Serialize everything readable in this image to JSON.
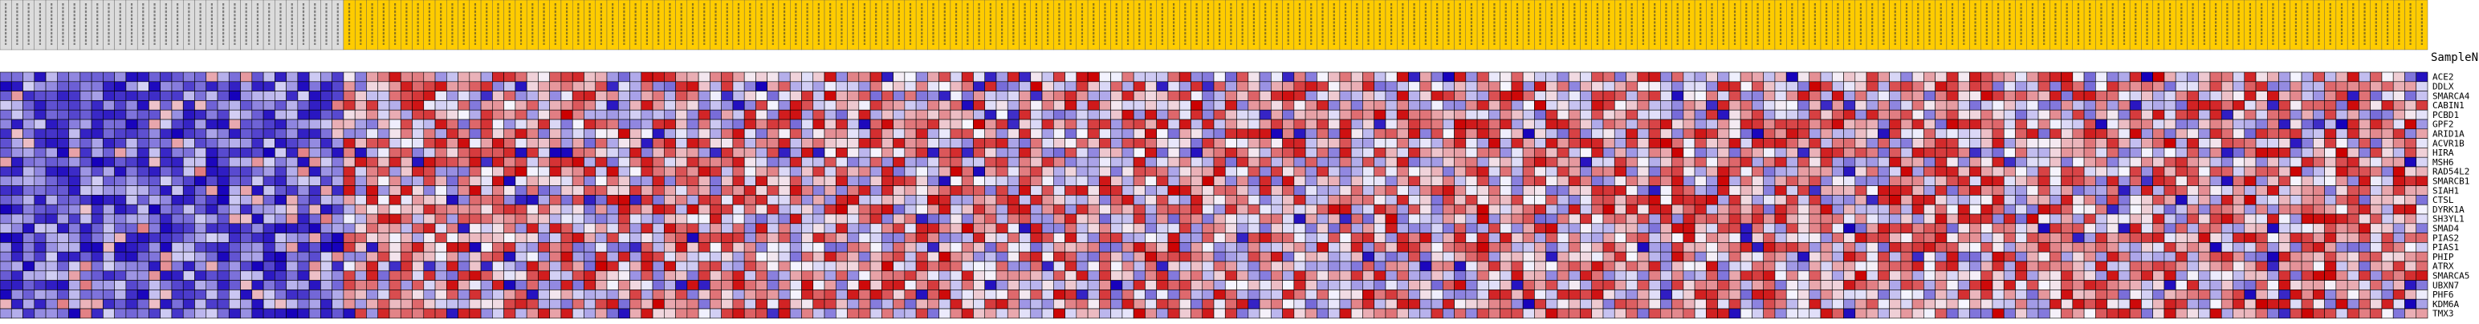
{
  "chart_data": {
    "type": "heatmap",
    "title": "",
    "row_header": "SampleName",
    "rows": [
      "ACE2",
      "DDLX",
      "SMARCA4",
      "CABIN1",
      "PCBD1",
      "GPF2",
      "ARID1A",
      "ACVR1B",
      "HIRA",
      "MSH6",
      "RAD54L2",
      "SMARCB1",
      "SIAH1",
      "CTSL",
      "DYRK1A",
      "SH3YL1",
      "SMAD4",
      "PIAS2",
      "PIAS1",
      "PHIP",
      "ATRX",
      "SMARCA5",
      "UBXN7",
      "PHF6",
      "KDM6A",
      "TMX3"
    ],
    "n_columns": 212,
    "n_normal_columns": 30,
    "n_tumor_columns": 182,
    "column_label_text": "illegible sample identifiers",
    "value_range": [
      -1,
      1
    ],
    "colors": {
      "normal_header": "#dcdcdc",
      "tumor_header": "#ffcc00",
      "low": "#1500bb",
      "mid": "#f6f6ff",
      "high": "#cc0000",
      "grid": "#000000"
    },
    "legend": "none",
    "grid": true
  }
}
